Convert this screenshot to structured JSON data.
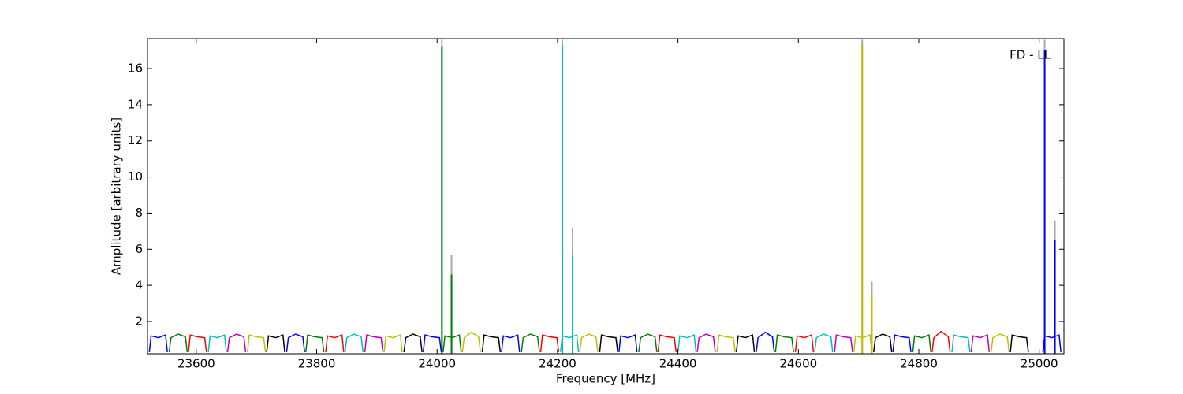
{
  "chart_data": {
    "type": "line",
    "annotation": "FD - LL",
    "x_label": "Frequency [MHz]",
    "y_label": "Amplitude [arbitrary units]",
    "xlim": [
      23519,
      25041
    ],
    "ylim": [
      0.21,
      17.66
    ],
    "xticks": [
      23600,
      23800,
      24000,
      24200,
      24400,
      24600,
      24800,
      25000
    ],
    "yticks": [
      2,
      4,
      6,
      8,
      10,
      12,
      14,
      16
    ],
    "series": [
      {
        "color": "#0000ff",
        "x": [
          23522,
          23525,
          23537,
          23549,
          23552
        ],
        "values": [
          0.3,
          1.2,
          1.1,
          1.25,
          0.3
        ]
      },
      {
        "color": "#008000",
        "x": [
          23555,
          23558,
          23570,
          23582,
          23585
        ],
        "values": [
          0.3,
          1.1,
          1.3,
          1.15,
          0.3
        ]
      },
      {
        "color": "#ff0000",
        "x": [
          23587,
          23590,
          23602,
          23614,
          23617
        ],
        "values": [
          0.3,
          1.25,
          1.15,
          1.1,
          0.3
        ]
      },
      {
        "color": "#00bfbf",
        "x": [
          23620,
          23623,
          23635,
          23647,
          23650
        ],
        "values": [
          0.3,
          1.2,
          1.1,
          1.25,
          0.3
        ]
      },
      {
        "color": "#bf00bf",
        "x": [
          23652,
          23655,
          23667,
          23679,
          23682
        ],
        "values": [
          0.3,
          1.1,
          1.3,
          1.15,
          0.3
        ]
      },
      {
        "color": "#bfbf00",
        "x": [
          23685,
          23688,
          23700,
          23712,
          23715
        ],
        "values": [
          0.3,
          1.25,
          1.15,
          1.1,
          0.3
        ]
      },
      {
        "color": "#000000",
        "x": [
          23717,
          23720,
          23732,
          23744,
          23747
        ],
        "values": [
          0.3,
          1.2,
          1.1,
          1.25,
          0.3
        ]
      },
      {
        "color": "#0000ff",
        "x": [
          23750,
          23753,
          23765,
          23777,
          23780
        ],
        "values": [
          0.3,
          1.1,
          1.3,
          1.15,
          0.3
        ]
      },
      {
        "color": "#008000",
        "x": [
          23782,
          23785,
          23797,
          23809,
          23812
        ],
        "values": [
          0.3,
          1.25,
          1.15,
          1.1,
          0.3
        ]
      },
      {
        "color": "#ff0000",
        "x": [
          23815,
          23818,
          23830,
          23842,
          23845
        ],
        "values": [
          0.3,
          1.2,
          1.1,
          1.25,
          0.3
        ]
      },
      {
        "color": "#00bfbf",
        "x": [
          23847,
          23850,
          23862,
          23874,
          23877
        ],
        "values": [
          0.3,
          1.1,
          1.3,
          1.15,
          0.3
        ]
      },
      {
        "color": "#bf00bf",
        "x": [
          23880,
          23883,
          23895,
          23907,
          23910
        ],
        "values": [
          0.3,
          1.25,
          1.15,
          1.1,
          0.3
        ]
      },
      {
        "color": "#bfbf00",
        "x": [
          23912,
          23915,
          23927,
          23939,
          23942
        ],
        "values": [
          0.3,
          1.2,
          1.1,
          1.25,
          0.3
        ]
      },
      {
        "color": "#000000",
        "x": [
          23945,
          23948,
          23960,
          23972,
          23975
        ],
        "values": [
          0.3,
          1.1,
          1.3,
          1.15,
          0.3
        ]
      },
      {
        "color": "#0000ff",
        "x": [
          23977,
          23980,
          23992,
          24004,
          24007
        ],
        "values": [
          0.3,
          1.25,
          1.15,
          1.1,
          0.3
        ]
      },
      {
        "color": "#008000",
        "x": [
          24010,
          24013,
          24025,
          24037,
          24040
        ],
        "values": [
          0.3,
          1.2,
          1.1,
          1.25,
          0.3
        ]
      },
      {
        "color": "#bfbf00",
        "x": [
          24042,
          24045,
          24057,
          24069,
          24072
        ],
        "values": [
          0.3,
          1.1,
          1.4,
          1.15,
          0.3
        ]
      },
      {
        "color": "#000000",
        "x": [
          24075,
          24078,
          24090,
          24102,
          24105
        ],
        "values": [
          0.3,
          1.25,
          1.15,
          1.1,
          0.3
        ]
      },
      {
        "color": "#0000ff",
        "x": [
          24107,
          24110,
          24122,
          24134,
          24137
        ],
        "values": [
          0.3,
          1.2,
          1.1,
          1.25,
          0.3
        ]
      },
      {
        "color": "#008000",
        "x": [
          24140,
          24143,
          24155,
          24167,
          24170
        ],
        "values": [
          0.3,
          1.1,
          1.3,
          1.15,
          0.3
        ]
      },
      {
        "color": "#ff0000",
        "x": [
          24172,
          24175,
          24187,
          24199,
          24202
        ],
        "values": [
          0.3,
          1.25,
          1.15,
          1.1,
          0.3
        ]
      },
      {
        "color": "#00bfbf",
        "x": [
          24205,
          24208,
          24220,
          24232,
          24235
        ],
        "values": [
          0.3,
          1.2,
          1.1,
          1.25,
          0.3
        ]
      },
      {
        "color": "#bfbf00",
        "x": [
          24237,
          24240,
          24252,
          24264,
          24267
        ],
        "values": [
          0.3,
          1.1,
          1.3,
          1.15,
          0.3
        ]
      },
      {
        "color": "#000000",
        "x": [
          24270,
          24273,
          24285,
          24297,
          24300
        ],
        "values": [
          0.3,
          1.25,
          1.15,
          1.1,
          0.3
        ]
      },
      {
        "color": "#0000ff",
        "x": [
          24302,
          24305,
          24317,
          24329,
          24332
        ],
        "values": [
          0.3,
          1.2,
          1.1,
          1.25,
          0.3
        ]
      },
      {
        "color": "#008000",
        "x": [
          24335,
          24338,
          24350,
          24362,
          24365
        ],
        "values": [
          0.3,
          1.1,
          1.3,
          1.15,
          0.3
        ]
      },
      {
        "color": "#ff0000",
        "x": [
          24367,
          24370,
          24382,
          24394,
          24397
        ],
        "values": [
          0.3,
          1.25,
          1.15,
          1.1,
          0.3
        ]
      },
      {
        "color": "#00bfbf",
        "x": [
          24400,
          24403,
          24415,
          24427,
          24430
        ],
        "values": [
          0.3,
          1.2,
          1.1,
          1.25,
          0.3
        ]
      },
      {
        "color": "#bf00bf",
        "x": [
          24432,
          24435,
          24447,
          24459,
          24462
        ],
        "values": [
          0.3,
          1.1,
          1.3,
          1.15,
          0.3
        ]
      },
      {
        "color": "#bfbf00",
        "x": [
          24465,
          24468,
          24480,
          24492,
          24495
        ],
        "values": [
          0.3,
          1.25,
          1.15,
          1.1,
          0.3
        ]
      },
      {
        "color": "#000000",
        "x": [
          24497,
          24500,
          24512,
          24524,
          24527
        ],
        "values": [
          0.3,
          1.2,
          1.1,
          1.25,
          0.3
        ]
      },
      {
        "color": "#0000ff",
        "x": [
          24530,
          24533,
          24545,
          24557,
          24560
        ],
        "values": [
          0.3,
          1.1,
          1.4,
          1.15,
          0.3
        ]
      },
      {
        "color": "#008000",
        "x": [
          24562,
          24565,
          24577,
          24589,
          24592
        ],
        "values": [
          0.3,
          1.25,
          1.15,
          1.1,
          0.3
        ]
      },
      {
        "color": "#ff0000",
        "x": [
          24595,
          24598,
          24610,
          24622,
          24625
        ],
        "values": [
          0.3,
          1.2,
          1.1,
          1.25,
          0.3
        ]
      },
      {
        "color": "#00bfbf",
        "x": [
          24627,
          24630,
          24642,
          24654,
          24657
        ],
        "values": [
          0.3,
          1.1,
          1.3,
          1.15,
          0.3
        ]
      },
      {
        "color": "#bf00bf",
        "x": [
          24660,
          24663,
          24675,
          24687,
          24690
        ],
        "values": [
          0.3,
          1.25,
          1.15,
          1.1,
          0.3
        ]
      },
      {
        "color": "#bfbf00",
        "x": [
          24692,
          24695,
          24707,
          24719,
          24722
        ],
        "values": [
          0.3,
          1.2,
          1.1,
          1.25,
          0.3
        ]
      },
      {
        "color": "#000000",
        "x": [
          24725,
          24728,
          24740,
          24752,
          24755
        ],
        "values": [
          0.3,
          1.1,
          1.3,
          1.15,
          0.3
        ]
      },
      {
        "color": "#0000ff",
        "x": [
          24757,
          24760,
          24772,
          24784,
          24787
        ],
        "values": [
          0.3,
          1.25,
          1.15,
          1.1,
          0.3
        ]
      },
      {
        "color": "#008000",
        "x": [
          24790,
          24793,
          24805,
          24817,
          24820
        ],
        "values": [
          0.3,
          1.2,
          1.1,
          1.25,
          0.3
        ]
      },
      {
        "color": "#ff0000",
        "x": [
          24822,
          24825,
          24837,
          24849,
          24852
        ],
        "values": [
          0.3,
          1.1,
          1.45,
          1.15,
          0.3
        ]
      },
      {
        "color": "#00bfbf",
        "x": [
          24855,
          24858,
          24870,
          24882,
          24885
        ],
        "values": [
          0.3,
          1.25,
          1.15,
          1.1,
          0.3
        ]
      },
      {
        "color": "#bf00bf",
        "x": [
          24887,
          24890,
          24902,
          24914,
          24917
        ],
        "values": [
          0.3,
          1.2,
          1.1,
          1.25,
          0.3
        ]
      },
      {
        "color": "#bfbf00",
        "x": [
          24920,
          24923,
          24935,
          24947,
          24950
        ],
        "values": [
          0.3,
          1.1,
          1.3,
          1.15,
          0.3
        ]
      },
      {
        "color": "#000000",
        "x": [
          24952,
          24955,
          24967,
          24979,
          24982
        ],
        "values": [
          0.3,
          1.25,
          1.15,
          1.1,
          0.3
        ]
      },
      {
        "color": "#0000ff",
        "x": [
          25006,
          25009,
          25021,
          25033,
          25036
        ],
        "values": [
          0.3,
          1.2,
          1.1,
          1.25,
          0.3
        ]
      }
    ],
    "spikes": [
      {
        "color": "#aaaaaa",
        "x": 24008,
        "value": 17.6
      },
      {
        "color": "#aaaaaa",
        "x": 24024,
        "value": 5.7
      },
      {
        "color": "#aaaaaa",
        "x": 24208,
        "value": 17.6
      },
      {
        "color": "#aaaaaa",
        "x": 24225,
        "value": 7.2
      },
      {
        "color": "#aaaaaa",
        "x": 24706,
        "value": 17.6
      },
      {
        "color": "#aaaaaa",
        "x": 24722,
        "value": 4.2
      },
      {
        "color": "#aaaaaa",
        "x": 25009,
        "value": 17.6
      },
      {
        "color": "#aaaaaa",
        "x": 25026,
        "value": 7.6
      },
      {
        "color": "#008000",
        "x": 24008,
        "value": 17.2
      },
      {
        "color": "#008000",
        "x": 24024,
        "value": 4.6
      },
      {
        "color": "#00bfbf",
        "x": 24208,
        "value": 17.3
      },
      {
        "color": "#00bfbf",
        "x": 24225,
        "value": 5.7
      },
      {
        "color": "#bfbf00",
        "x": 24706,
        "value": 17.3
      },
      {
        "color": "#bfbf00",
        "x": 24722,
        "value": 3.5
      },
      {
        "color": "#0000ff",
        "x": 25009,
        "value": 17.0
      },
      {
        "color": "#0000ff",
        "x": 25026,
        "value": 6.5
      }
    ]
  }
}
